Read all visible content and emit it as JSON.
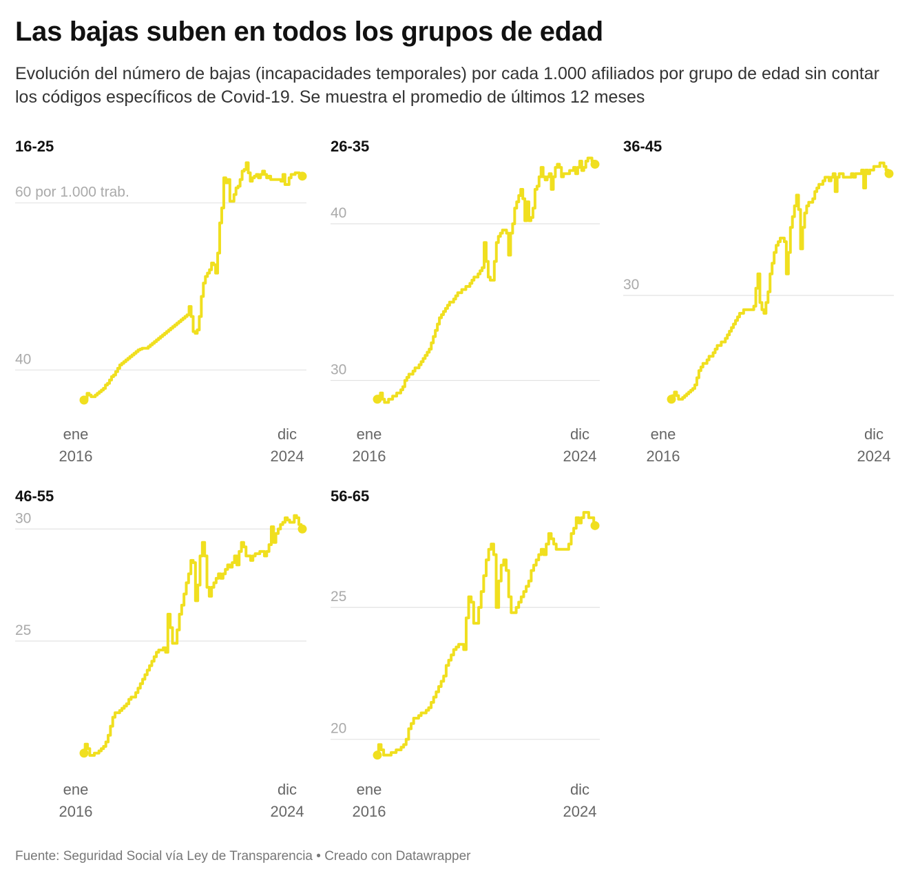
{
  "header": {
    "title": "Las bajas suben en todos los grupos de edad",
    "subtitle": "Evolución del número de bajas (incapacidades temporales) por cada 1.000 afiliados por grupo de edad sin contar los códigos específicos de Covid-19. Se muestra el promedio de últimos 12 meses"
  },
  "footer": {
    "source": "Fuente: Seguridad Social vía Ley de Transparencia • Creado con Datawrapper"
  },
  "colors": {
    "line": "#f0df1f",
    "grid": "#e2e2e2",
    "tick": "#aaaaaa",
    "axis": "#666666"
  },
  "chart_data": [
    {
      "type": "line",
      "title": "16-25",
      "x_start": "ene 2016",
      "x_end": "dic 2024",
      "x_tick_start": [
        "ene",
        "2016"
      ],
      "x_tick_end": [
        "dic",
        "2024"
      ],
      "ylim": [
        35,
        65
      ],
      "y_ticks": [
        {
          "value": 40,
          "label": "40"
        },
        {
          "value": 60,
          "label": "60 por 1.000 trab."
        }
      ],
      "values": [
        36.4,
        36.6,
        37.2,
        37.0,
        36.8,
        36.8,
        37.0,
        37.2,
        37.4,
        37.6,
        37.8,
        38.2,
        38.4,
        38.8,
        39.2,
        39.4,
        39.8,
        40.2,
        40.6,
        40.8,
        41.0,
        41.2,
        41.4,
        41.6,
        41.8,
        42.0,
        42.2,
        42.4,
        42.5,
        42.6,
        42.6,
        42.6,
        42.8,
        43.0,
        43.2,
        43.4,
        43.6,
        43.8,
        44.0,
        44.2,
        44.4,
        44.6,
        44.8,
        45.0,
        45.2,
        45.4,
        45.6,
        45.8,
        46.0,
        46.2,
        46.4,
        46.6,
        47.6,
        46.4,
        44.6,
        44.4,
        44.8,
        46.4,
        48.8,
        50.4,
        51.2,
        51.6,
        52.0,
        52.8,
        52.6,
        51.6,
        54.0,
        57.6,
        59.4,
        63.0,
        62.4,
        62.8,
        60.2,
        60.2,
        61.0,
        61.8,
        62.0,
        62.8,
        63.8,
        64.0,
        64.8,
        63.6,
        62.6,
        63.0,
        63.2,
        63.4,
        63.0,
        63.4,
        63.8,
        63.4,
        63.0,
        63.2,
        62.8,
        62.8,
        62.8,
        62.8,
        62.8,
        62.6,
        63.4,
        62.2,
        62.2,
        63.0,
        63.4,
        63.4,
        63.6,
        63.6,
        63.4,
        63.2
      ]
    },
    {
      "type": "line",
      "title": "26-35",
      "x_start": "ene 2016",
      "x_end": "dic 2024",
      "x_tick_start": [
        "ene",
        "2016"
      ],
      "x_tick_end": [
        "dic",
        "2024"
      ],
      "ylim": [
        28,
        44
      ],
      "y_ticks": [
        {
          "value": 30,
          "label": "30"
        },
        {
          "value": 40,
          "label": "40"
        }
      ],
      "values": [
        28.8,
        29.0,
        29.2,
        28.8,
        28.6,
        28.6,
        28.8,
        28.8,
        29.0,
        29.0,
        29.2,
        29.2,
        29.4,
        29.6,
        30.0,
        30.2,
        30.4,
        30.4,
        30.6,
        30.8,
        30.8,
        31.0,
        31.2,
        31.4,
        31.6,
        31.8,
        32.0,
        32.4,
        32.8,
        33.2,
        33.6,
        34.0,
        34.2,
        34.4,
        34.6,
        34.8,
        35.0,
        35.0,
        35.2,
        35.4,
        35.6,
        35.6,
        35.8,
        35.8,
        36.0,
        36.0,
        36.2,
        36.4,
        36.6,
        36.6,
        36.8,
        37.0,
        37.2,
        38.8,
        37.6,
        36.6,
        36.4,
        36.4,
        37.6,
        38.8,
        39.2,
        39.4,
        39.6,
        39.6,
        39.4,
        38.0,
        39.4,
        40.0,
        41.0,
        41.4,
        41.8,
        42.2,
        41.6,
        40.2,
        41.4,
        40.2,
        40.4,
        41.0,
        42.2,
        42.4,
        43.0,
        43.6,
        43.0,
        42.8,
        43.0,
        43.2,
        42.2,
        43.0,
        43.6,
        43.8,
        43.6,
        43.0,
        43.2,
        43.2,
        43.2,
        43.4,
        43.4,
        43.6,
        43.2,
        43.6,
        44.0,
        43.4,
        43.6,
        44.0,
        44.2,
        44.2,
        44.0,
        43.8
      ]
    },
    {
      "type": "line",
      "title": "36-45",
      "x_start": "ene 2016",
      "x_end": "dic 2024",
      "x_tick_start": [
        "ene",
        "2016"
      ],
      "x_tick_end": [
        "dic",
        "2024"
      ],
      "ylim": [
        23.5,
        37.5
      ],
      "y_ticks": [
        {
          "value": 30,
          "label": "30"
        }
      ],
      "values": [
        24.2,
        24.4,
        24.6,
        24.4,
        24.2,
        24.2,
        24.3,
        24.4,
        24.5,
        24.6,
        24.7,
        24.8,
        25.0,
        25.4,
        25.8,
        26.0,
        26.2,
        26.2,
        26.4,
        26.6,
        26.6,
        26.8,
        27.0,
        27.2,
        27.2,
        27.4,
        27.4,
        27.6,
        27.8,
        28.0,
        28.2,
        28.4,
        28.6,
        28.8,
        29.0,
        29.0,
        29.2,
        29.2,
        29.2,
        29.2,
        29.2,
        29.4,
        30.4,
        31.2,
        29.6,
        29.2,
        29.0,
        29.6,
        30.2,
        31.2,
        31.8,
        32.4,
        32.8,
        33.0,
        33.2,
        33.2,
        33.0,
        31.2,
        32.4,
        33.8,
        34.4,
        35.0,
        35.6,
        34.8,
        32.6,
        33.8,
        34.6,
        35.0,
        35.2,
        35.2,
        35.4,
        35.8,
        36.0,
        36.2,
        36.2,
        36.4,
        36.6,
        36.6,
        36.4,
        36.6,
        36.8,
        35.8,
        36.6,
        36.8,
        36.8,
        36.6,
        36.6,
        36.6,
        36.6,
        36.8,
        36.6,
        36.8,
        36.8,
        36.8,
        37.0,
        36.0,
        37.0,
        36.8,
        37.0,
        37.0,
        37.2,
        37.2,
        37.2,
        37.4,
        37.4,
        37.2,
        37.0,
        36.8
      ]
    },
    {
      "type": "line",
      "title": "46-55",
      "x_start": "ene 2016",
      "x_end": "dic 2024",
      "x_tick_start": [
        "ene",
        "2016"
      ],
      "x_tick_end": [
        "dic",
        "2024"
      ],
      "ylim": [
        19.5,
        30.5
      ],
      "y_ticks": [
        {
          "value": 25,
          "label": "25"
        },
        {
          "value": 30,
          "label": "30"
        }
      ],
      "values": [
        20.0,
        20.4,
        20.2,
        19.9,
        19.9,
        20.0,
        20.0,
        20.1,
        20.2,
        20.3,
        20.5,
        20.8,
        21.2,
        21.6,
        21.8,
        21.8,
        21.9,
        22.0,
        22.1,
        22.2,
        22.4,
        22.5,
        22.5,
        22.7,
        22.9,
        23.1,
        23.3,
        23.5,
        23.7,
        23.9,
        24.1,
        24.3,
        24.5,
        24.6,
        24.6,
        24.7,
        24.5,
        26.2,
        25.6,
        24.9,
        24.9,
        25.5,
        26.2,
        26.6,
        27.1,
        27.6,
        28.0,
        28.6,
        28.5,
        26.8,
        27.5,
        28.8,
        29.4,
        28.8,
        27.4,
        27.0,
        27.4,
        27.6,
        27.8,
        28.0,
        27.8,
        28.0,
        28.2,
        28.4,
        28.3,
        28.5,
        28.8,
        28.4,
        29.0,
        29.4,
        29.2,
        28.8,
        28.8,
        28.6,
        28.8,
        28.9,
        28.9,
        29.0,
        29.0,
        28.8,
        29.0,
        29.3,
        30.1,
        29.4,
        29.8,
        30.0,
        30.2,
        30.3,
        30.5,
        30.4,
        30.3,
        30.3,
        30.6,
        30.5,
        30.2,
        30.0
      ]
    },
    {
      "type": "line",
      "title": "56-65",
      "x_start": "ene 2016",
      "x_end": "dic 2024",
      "x_tick_start": [
        "ene",
        "2016"
      ],
      "x_tick_end": [
        "dic",
        "2024"
      ],
      "ylim": [
        19,
        28.5
      ],
      "y_ticks": [
        {
          "value": 20,
          "label": "20"
        },
        {
          "value": 25,
          "label": "25"
        }
      ],
      "values": [
        19.4,
        19.8,
        19.6,
        19.4,
        19.4,
        19.4,
        19.5,
        19.5,
        19.6,
        19.6,
        19.7,
        19.8,
        20.0,
        20.4,
        20.6,
        20.8,
        20.8,
        20.9,
        21.0,
        21.0,
        21.1,
        21.2,
        21.4,
        21.6,
        21.8,
        22.0,
        22.2,
        22.4,
        22.8,
        23.0,
        23.2,
        23.4,
        23.5,
        23.6,
        23.6,
        23.4,
        24.6,
        25.4,
        25.2,
        24.4,
        24.4,
        25.0,
        25.6,
        26.2,
        26.8,
        27.2,
        27.4,
        27.0,
        25.0,
        26.0,
        26.6,
        26.8,
        26.4,
        25.4,
        24.8,
        24.8,
        25.0,
        25.2,
        25.4,
        25.6,
        25.8,
        26.0,
        26.4,
        26.6,
        26.8,
        27.0,
        27.2,
        27.0,
        27.4,
        27.8,
        27.6,
        27.4,
        27.2,
        27.2,
        27.2,
        27.2,
        27.2,
        27.4,
        27.8,
        28.0,
        28.4,
        28.2,
        28.4,
        28.6,
        28.6,
        28.4,
        28.4,
        28.1
      ]
    }
  ]
}
